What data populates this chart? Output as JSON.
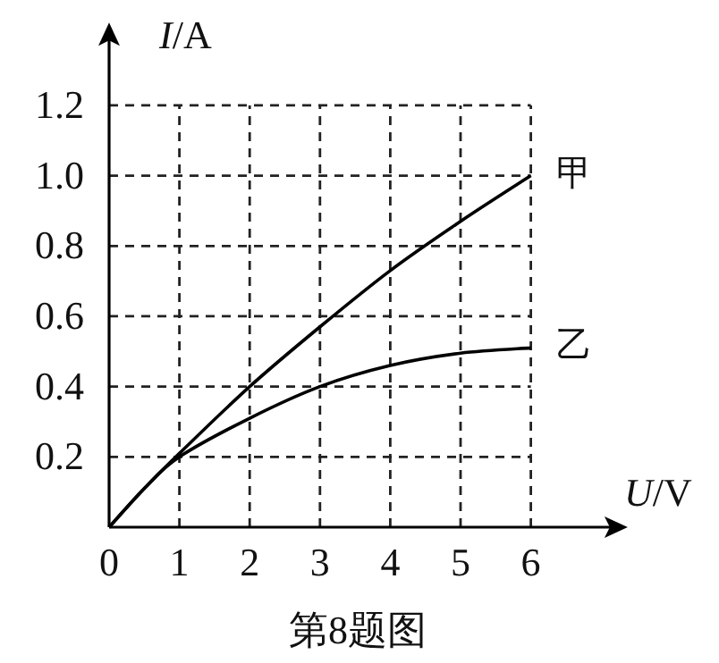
{
  "chart_data": {
    "type": "line",
    "xlabel": "*U*/V",
    "ylabel": "*I*/A",
    "x": [
      0,
      0.5,
      1,
      2,
      3,
      4,
      5,
      6
    ],
    "series": [
      {
        "name": "甲",
        "color": "#000000",
        "values": [
          0,
          0.11,
          0.21,
          0.4,
          0.57,
          0.73,
          0.87,
          1.0
        ]
      },
      {
        "name": "乙",
        "color": "#000000",
        "values": [
          0,
          0.11,
          0.2,
          0.31,
          0.4,
          0.46,
          0.495,
          0.51
        ]
      }
    ],
    "xlim": [
      0,
      7.2
    ],
    "ylim": [
      0,
      1.4
    ],
    "xticks": [
      0,
      1,
      2,
      3,
      4,
      5,
      6
    ],
    "yticks": [
      0.2,
      0.4,
      0.6,
      0.8,
      {
        "value": 1.0,
        "label": "1.0"
      },
      1.2
    ],
    "grid": true,
    "marker": "none",
    "line_style": "solid",
    "annotations": [
      "第8题图"
    ]
  }
}
